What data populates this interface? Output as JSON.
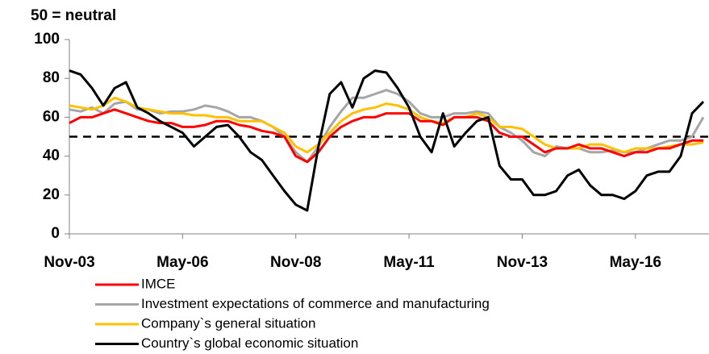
{
  "chart_data": {
    "type": "line",
    "title": "50 = neutral",
    "categories": [
      "Nov-03",
      null,
      null,
      null,
      null,
      null,
      null,
      null,
      null,
      null,
      "May-06",
      null,
      null,
      null,
      null,
      null,
      null,
      null,
      null,
      null,
      "Nov-08",
      null,
      null,
      null,
      null,
      null,
      null,
      null,
      null,
      null,
      "May-11",
      null,
      null,
      null,
      null,
      null,
      null,
      null,
      null,
      null,
      "Nov-13",
      null,
      null,
      null,
      null,
      null,
      null,
      null,
      null,
      null,
      "May-16",
      null,
      null,
      null,
      null,
      null,
      null
    ],
    "series": [
      {
        "name": "IMCE",
        "color": "#ff0000",
        "values": [
          57,
          60,
          60,
          62,
          64,
          62,
          60,
          58,
          57,
          57,
          55,
          55,
          56,
          58,
          58,
          56,
          55,
          53,
          52,
          50,
          40,
          37,
          42,
          50,
          55,
          58,
          60,
          60,
          62,
          62,
          62,
          58,
          58,
          56,
          60,
          60,
          60,
          58,
          52,
          50,
          50,
          46,
          42,
          44,
          44,
          46,
          44,
          44,
          42,
          40,
          42,
          42,
          44,
          44,
          46,
          48,
          48
        ]
      },
      {
        "name": "Investment expectations of commerce and manufacturing",
        "color": "#a6a6a6",
        "values": [
          64,
          63,
          65,
          62,
          67,
          68,
          64,
          64,
          62,
          63,
          63,
          64,
          66,
          65,
          63,
          60,
          60,
          58,
          55,
          50,
          42,
          37,
          45,
          55,
          63,
          70,
          70,
          72,
          74,
          72,
          68,
          62,
          60,
          60,
          62,
          62,
          63,
          62,
          55,
          52,
          48,
          42,
          40,
          45,
          44,
          44,
          42,
          42,
          43,
          42,
          42,
          44,
          46,
          48,
          48,
          50,
          60
        ]
      },
      {
        "name": "Company`s general situation",
        "color": "#ffc000",
        "values": [
          66,
          65,
          64,
          66,
          70,
          68,
          65,
          64,
          63,
          62,
          62,
          61,
          61,
          60,
          60,
          58,
          58,
          58,
          55,
          52,
          45,
          42,
          46,
          52,
          58,
          62,
          64,
          65,
          67,
          66,
          64,
          60,
          58,
          57,
          60,
          60,
          62,
          60,
          55,
          55,
          54,
          50,
          46,
          44,
          44,
          44,
          46,
          46,
          44,
          42,
          44,
          44,
          44,
          45,
          46,
          46,
          47
        ]
      },
      {
        "name": "Country`s global economic situation",
        "color": "#000000",
        "values": [
          84,
          82,
          75,
          66,
          75,
          78,
          65,
          62,
          58,
          55,
          52,
          45,
          50,
          55,
          56,
          50,
          42,
          38,
          30,
          22,
          15,
          12,
          45,
          72,
          78,
          65,
          80,
          84,
          83,
          75,
          65,
          50,
          42,
          62,
          45,
          52,
          58,
          60,
          35,
          28,
          28,
          20,
          20,
          22,
          30,
          33,
          25,
          20,
          20,
          18,
          22,
          30,
          32,
          32,
          40,
          62,
          68
        ]
      }
    ],
    "neutral_line": 50,
    "ylim": [
      0,
      100
    ],
    "yticks": [
      0,
      20,
      40,
      60,
      80,
      100
    ]
  }
}
